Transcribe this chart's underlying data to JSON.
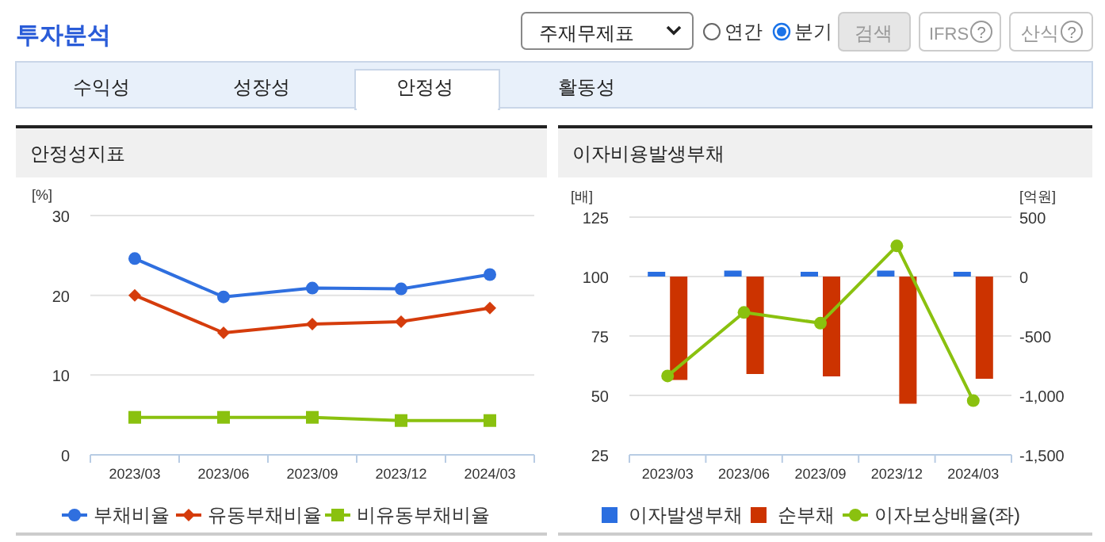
{
  "chart_data": [
    {
      "type": "other",
      "title": "투자분석",
      "annotations": [
        "주재무제표",
        "연간",
        "분기",
        "검색",
        "IFRS",
        "?",
        "산식",
        "?",
        "수익성",
        "성장성",
        "안정성",
        "활동성"
      ]
    },
    {
      "type": "line",
      "title": "안정성지표",
      "ylabel": "[%]",
      "categories": [
        "2023/03",
        "2023/06",
        "2023/09",
        "2023/12",
        "2024/03"
      ],
      "series": [
        {
          "name": "부채비율",
          "color": "#2f6fdf",
          "marker": "circle",
          "values": [
            24.6,
            19.8,
            20.9,
            20.8,
            22.6
          ]
        },
        {
          "name": "유동부채비율",
          "color": "#d53c0c",
          "marker": "diamond",
          "values": [
            20.0,
            15.3,
            16.4,
            16.7,
            18.4
          ]
        },
        {
          "name": "비유동부채비율",
          "color": "#8ac10f",
          "marker": "square",
          "values": [
            4.7,
            4.7,
            4.7,
            4.3,
            4.3
          ]
        }
      ],
      "ylim": [
        0,
        30
      ],
      "yticks": [
        0,
        10,
        20,
        30
      ],
      "grid": "y",
      "legend": "bottom"
    },
    {
      "type": "bar",
      "title": "이자비용발생부채",
      "ylabel": "[배]",
      "y2label": "[억원]",
      "categories": [
        "2023/03",
        "2023/06",
        "2023/09",
        "2023/12",
        "2024/03"
      ],
      "series": [
        {
          "name": "이자발생부채",
          "color": "#2a6ee0",
          "axis": "y2",
          "values": [
            40,
            50,
            40,
            50,
            40
          ]
        },
        {
          "name": "순부채",
          "color": "#cc3300",
          "axis": "y2",
          "values": [
            -870,
            -820,
            -840,
            -1070,
            -860
          ]
        },
        {
          "name": "이자보상배율(좌)",
          "type": "line",
          "color": "#8ac10f",
          "marker": "circle",
          "values": [
            58.2,
            84.9,
            80.4,
            112.9,
            47.8
          ]
        }
      ],
      "ylim": [
        25,
        125
      ],
      "yticks": [
        25,
        50,
        75,
        100,
        125
      ],
      "y2lim": [
        -1500,
        500
      ],
      "y2ticks": [
        {
          "value": -1500,
          "label": "-1,500"
        },
        {
          "value": -1000,
          "label": "-1,000"
        },
        -500,
        0,
        500
      ],
      "grid": "y",
      "legend": "bottom"
    }
  ]
}
